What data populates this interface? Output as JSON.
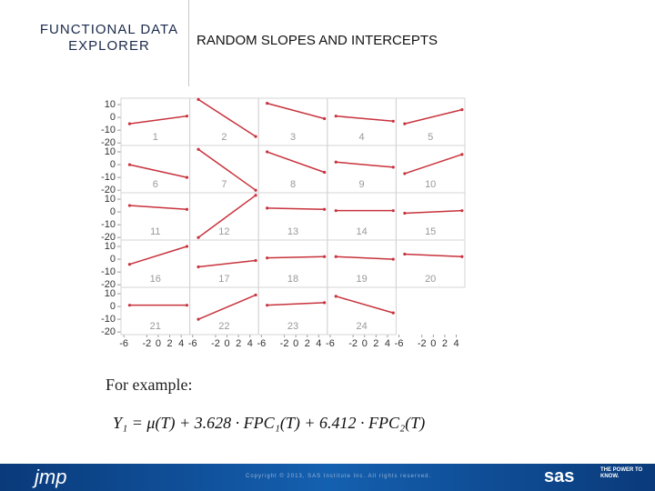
{
  "header": {
    "label": "FUNCTIONAL DATA EXPLORER",
    "title": "RANDOM SLOPES AND INTERCEPTS"
  },
  "example": {
    "intro": "For example:",
    "formula": "Y₁ = μ(T) + 3.628 · FPC₁(T) + 6.412 · FPC₂(T)"
  },
  "footer": {
    "logo": "jmp",
    "copyright": "Copyright © 2013, SAS Institute Inc. All rights reserved.",
    "brand": "sas",
    "tagline": "THE POWER TO KNOW."
  },
  "chart_data": {
    "type": "line",
    "x": [
      -5,
      5
    ],
    "xlim": [
      -6.5,
      5.5
    ],
    "xticks": [
      -6,
      -2,
      0,
      2,
      4
    ],
    "ylim": [
      -22,
      15
    ],
    "yticks": [
      10,
      0,
      -10,
      -20
    ],
    "columns": 5,
    "series": [
      {
        "name": "1",
        "color": "#c8323c",
        "values": [
          -5,
          1
        ]
      },
      {
        "name": "2",
        "color": "#c8323c",
        "values": [
          14,
          -15
        ]
      },
      {
        "name": "3",
        "color": "#c8323c",
        "values": [
          11,
          -1
        ]
      },
      {
        "name": "4",
        "color": "#c8323c",
        "values": [
          1,
          -3
        ]
      },
      {
        "name": "5",
        "color": "#c8323c",
        "values": [
          -5,
          6
        ]
      },
      {
        "name": "6",
        "color": "#c8323c",
        "values": [
          0,
          -10
        ]
      },
      {
        "name": "7",
        "color": "#c8323c",
        "values": [
          12,
          -20
        ]
      },
      {
        "name": "8",
        "color": "#c8323c",
        "values": [
          10,
          -6
        ]
      },
      {
        "name": "9",
        "color": "#c8323c",
        "values": [
          2,
          -2
        ]
      },
      {
        "name": "10",
        "color": "#c8323c",
        "values": [
          -7,
          8
        ]
      },
      {
        "name": "11",
        "color": "#c8323c",
        "values": [
          5,
          2
        ]
      },
      {
        "name": "12",
        "color": "#c8323c",
        "values": [
          -20,
          13
        ]
      },
      {
        "name": "13",
        "color": "#c8323c",
        "values": [
          3,
          2
        ]
      },
      {
        "name": "14",
        "color": "#c8323c",
        "values": [
          1,
          1
        ]
      },
      {
        "name": "15",
        "color": "#c8323c",
        "values": [
          -1,
          1
        ]
      },
      {
        "name": "16",
        "color": "#c8323c",
        "values": [
          -4,
          10
        ]
      },
      {
        "name": "17",
        "color": "#c8323c",
        "values": [
          -6,
          -1
        ]
      },
      {
        "name": "18",
        "color": "#c8323c",
        "values": [
          1,
          2
        ]
      },
      {
        "name": "19",
        "color": "#c8323c",
        "values": [
          2,
          0
        ]
      },
      {
        "name": "20",
        "color": "#c8323c",
        "values": [
          4,
          2
        ]
      },
      {
        "name": "21",
        "color": "#c8323c",
        "values": [
          1,
          1
        ]
      },
      {
        "name": "22",
        "color": "#c8323c",
        "values": [
          -10,
          9
        ]
      },
      {
        "name": "23",
        "color": "#c8323c",
        "values": [
          1,
          3
        ]
      },
      {
        "name": "24",
        "color": "#c8323c",
        "values": [
          8,
          -5
        ]
      }
    ]
  }
}
